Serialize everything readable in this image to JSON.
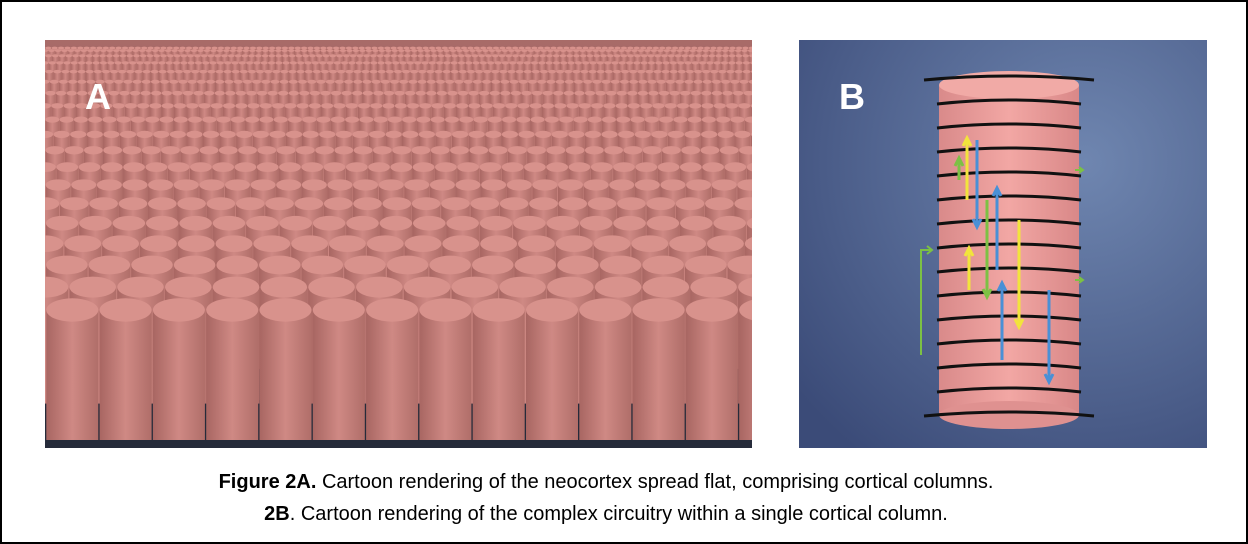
{
  "panels": [
    {
      "label": "A"
    },
    {
      "label": "B"
    }
  ],
  "caption": {
    "lines": [
      {
        "bold": "Figure 2A.",
        "text": " Cartoon rendering of the neocortex spread flat, comprising cortical columns."
      },
      {
        "bold": "2B",
        "text": ". Cartoon rendering of the complex circuitry within a single cortical column."
      }
    ]
  }
}
